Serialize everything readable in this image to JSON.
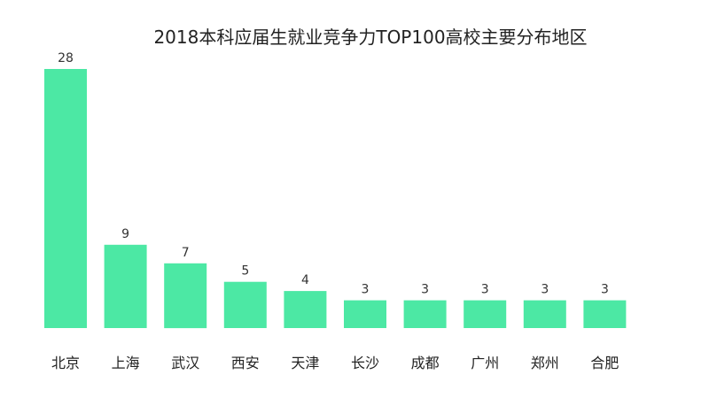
{
  "chart_data": {
    "type": "bar",
    "title": "2018本科应届生就业竞争力TOP100高校主要分布地区",
    "categories": [
      "北京",
      "上海",
      "武汉",
      "西安",
      "天津",
      "长沙",
      "成都",
      "广州",
      "郑州",
      "合肥"
    ],
    "values": [
      28,
      9,
      7,
      5,
      4,
      3,
      3,
      3,
      3,
      3
    ],
    "xlabel": "",
    "ylabel": "",
    "ylim": [
      0,
      28
    ],
    "grid": false,
    "show_value_labels": true,
    "colors": {
      "bar": "#4ce8a4",
      "text": "#222222"
    }
  }
}
